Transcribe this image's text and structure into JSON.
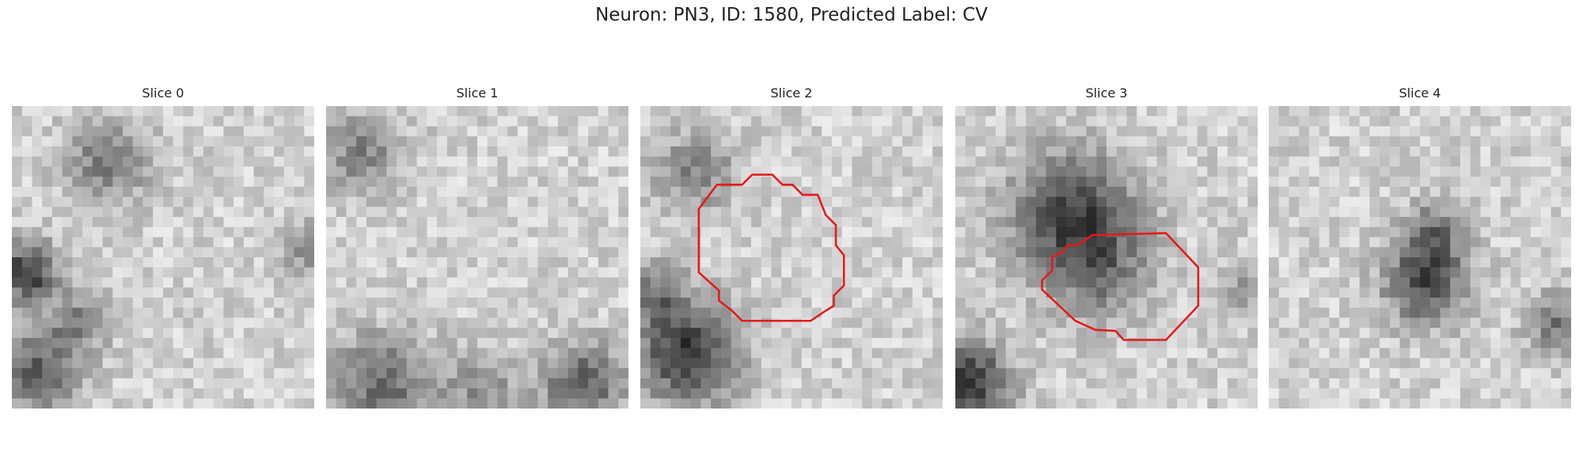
{
  "title": "Neuron: PN3, ID: 1580, Predicted Label: CV",
  "panels": [
    {
      "title": "Slice 0"
    },
    {
      "title": "Slice 1"
    },
    {
      "title": "Slice 2"
    },
    {
      "title": "Slice 3"
    },
    {
      "title": "Slice 4"
    }
  ]
}
